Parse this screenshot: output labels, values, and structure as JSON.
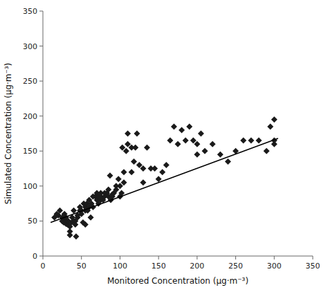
{
  "chart_data": {
    "type": "scatter",
    "xlabel": "Monitored Concentration (μg·m⁻³)",
    "ylabel": "Simulated Concentration (μg·m⁻³)",
    "xlim": [
      0,
      350
    ],
    "ylim": [
      0,
      350
    ],
    "xticks": [
      0,
      50,
      100,
      150,
      200,
      250,
      300,
      350
    ],
    "yticks": [
      0,
      50,
      100,
      150,
      200,
      250,
      300,
      350
    ],
    "grid": false,
    "series": [
      {
        "type": "scatter",
        "marker": "diamond",
        "color": "#1a1a1a",
        "x": [
          15,
          18,
          20,
          22,
          25,
          25,
          27,
          28,
          28,
          30,
          30,
          30,
          32,
          33,
          35,
          35,
          35,
          37,
          38,
          40,
          40,
          42,
          42,
          43,
          45,
          45,
          48,
          48,
          50,
          50,
          52,
          53,
          55,
          55,
          55,
          57,
          58,
          60,
          60,
          62,
          63,
          65,
          65,
          68,
          70,
          70,
          72,
          72,
          75,
          75,
          75,
          78,
          80,
          80,
          83,
          85,
          85,
          87,
          88,
          90,
          90,
          92,
          95,
          95,
          98,
          100,
          100,
          102,
          103,
          105,
          105,
          108,
          110,
          110,
          115,
          115,
          118,
          120,
          122,
          125,
          130,
          130,
          135,
          140,
          145,
          150,
          155,
          160,
          165,
          170,
          175,
          180,
          185,
          190,
          195,
          200,
          200,
          205,
          210,
          220,
          230,
          240,
          250,
          260,
          270,
          280,
          290,
          295,
          300,
          300,
          300
        ],
        "values": [
          55,
          60,
          58,
          65,
          50,
          55,
          48,
          52,
          60,
          46,
          50,
          55,
          45,
          50,
          30,
          35,
          42,
          48,
          55,
          50,
          65,
          45,
          50,
          28,
          55,
          58,
          65,
          70,
          60,
          65,
          48,
          75,
          70,
          65,
          45,
          75,
          65,
          80,
          70,
          55,
          75,
          85,
          70,
          85,
          80,
          90,
          75,
          85,
          80,
          90,
          85,
          80,
          85,
          90,
          90,
          85,
          95,
          115,
          80,
          88,
          85,
          90,
          95,
          100,
          110,
          100,
          85,
          90,
          155,
          105,
          120,
          150,
          160,
          175,
          155,
          120,
          135,
          155,
          175,
          130,
          105,
          125,
          155,
          125,
          125,
          110,
          120,
          130,
          165,
          185,
          160,
          180,
          165,
          185,
          165,
          145,
          160,
          175,
          150,
          160,
          145,
          135,
          150,
          165,
          165,
          165,
          150,
          185,
          195,
          165,
          160
        ]
      },
      {
        "type": "line",
        "line_style": "solid",
        "color": "#000000",
        "x": [
          10,
          305
        ],
        "values": [
          48,
          168
        ]
      }
    ]
  }
}
